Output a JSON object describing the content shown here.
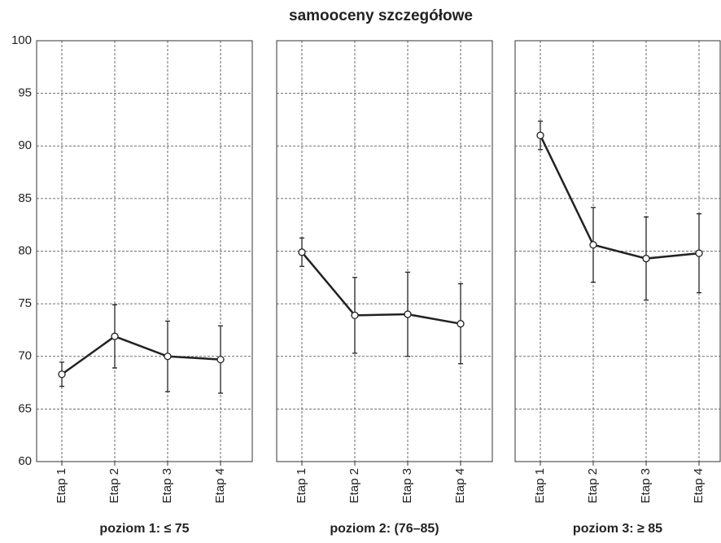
{
  "title": "samooceny szczegółowe",
  "chart_data": [
    {
      "type": "line",
      "x_label": "poziom 1: ≤ 75",
      "categories": [
        "Etap 1",
        "Etap 2",
        "Etap 3",
        "Etap 4"
      ],
      "values": [
        68.3,
        71.9,
        70.0,
        69.7
      ],
      "errors": [
        1.15,
        3.0,
        3.35,
        3.2
      ],
      "color": "#222222",
      "ylim": [
        60,
        100
      ],
      "yticks": [
        60,
        65,
        70,
        75,
        80,
        85,
        90,
        95,
        100
      ],
      "grid": true
    },
    {
      "type": "line",
      "x_label": "poziom 2: (76–85)",
      "categories": [
        "Etap 1",
        "Etap 2",
        "Etap 3",
        "Etap 4"
      ],
      "values": [
        79.9,
        73.9,
        74.0,
        73.1
      ],
      "errors": [
        1.35,
        3.6,
        4.0,
        3.8
      ],
      "color": "#222222",
      "ylim": [
        60,
        100
      ],
      "yticks": [
        60,
        65,
        70,
        75,
        80,
        85,
        90,
        95,
        100
      ],
      "grid": true
    },
    {
      "type": "line",
      "x_label": "poziom 3: ≥ 85",
      "categories": [
        "Etap 1",
        "Etap 2",
        "Etap 3",
        "Etap 4"
      ],
      "values": [
        91.0,
        80.6,
        79.3,
        79.8
      ],
      "errors": [
        1.35,
        3.55,
        3.95,
        3.75
      ],
      "color": "#222222",
      "ylim": [
        60,
        100
      ],
      "yticks": [
        60,
        65,
        70,
        75,
        80,
        85,
        90,
        95,
        100
      ],
      "grid": true
    }
  ]
}
